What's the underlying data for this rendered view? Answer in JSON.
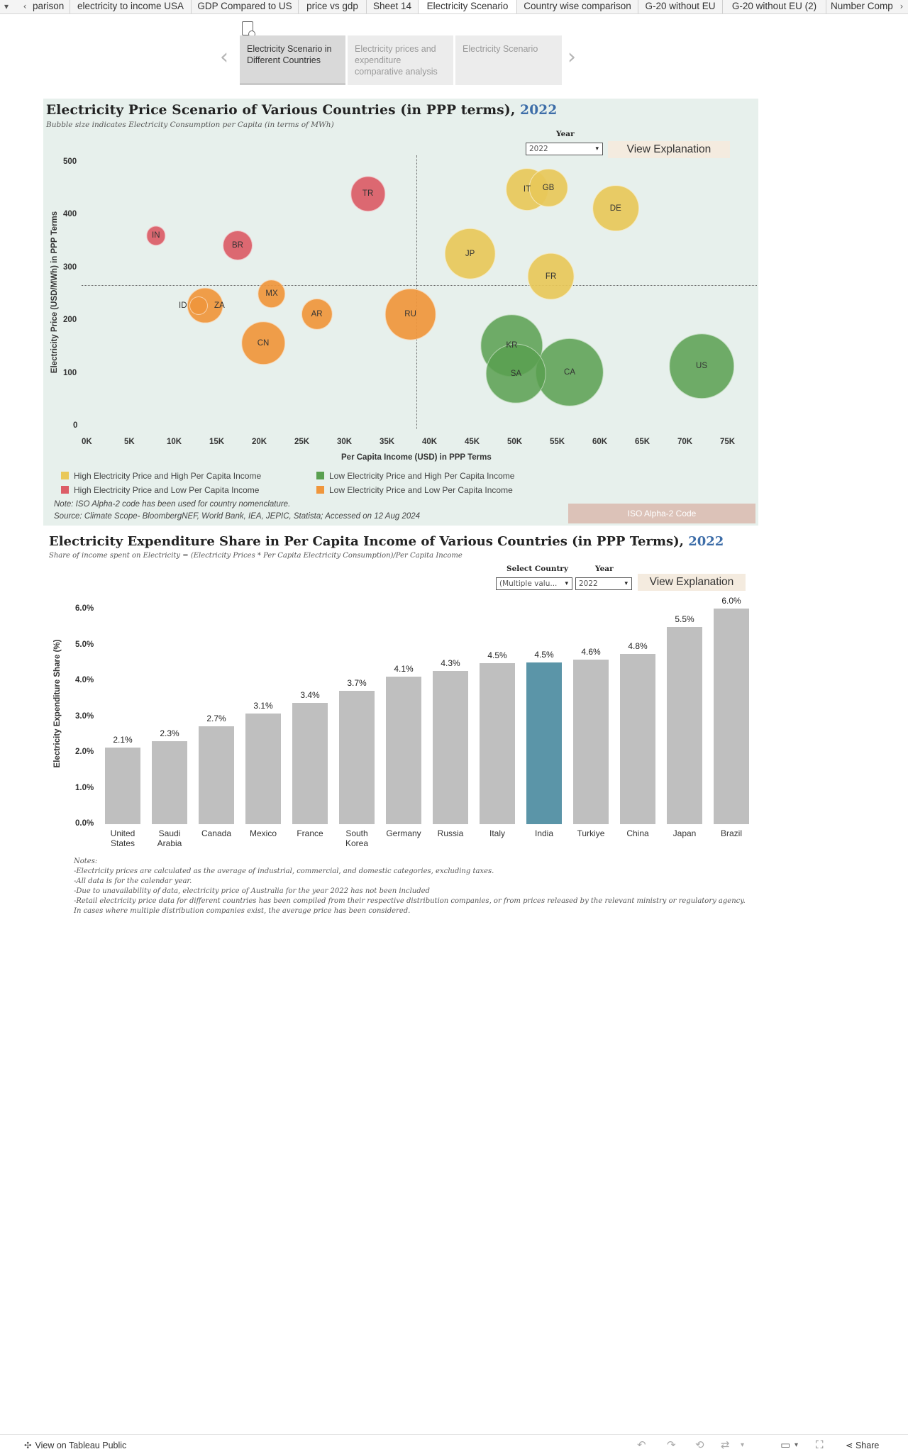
{
  "tabs": {
    "items": [
      {
        "label": "parison"
      },
      {
        "label": "electricity to income USA"
      },
      {
        "label": "GDP Compared to US"
      },
      {
        "label": "price vs gdp"
      },
      {
        "label": "Sheet 14"
      },
      {
        "label": "Electricity Scenario",
        "active": true
      },
      {
        "label": "Country wise comparison"
      },
      {
        "label": "G-20 without EU"
      },
      {
        "label": "G-20 without EU (2)"
      },
      {
        "label": "Number Comp"
      }
    ]
  },
  "story": {
    "points": [
      {
        "label": "Electricity Scenario in Different Countries"
      },
      {
        "label": "Electricity prices and expenditure comparative analysis"
      },
      {
        "label": "Electricity Scenario"
      }
    ]
  },
  "dashboard1": {
    "title": "Electricity Price Scenario of Various Countries (in PPP terms),",
    "title_year": "2022",
    "subtitle": "Bubble size indicates Electricity Consumption per Capita (in terms of MWh)",
    "year_label": "Year",
    "year_value": "2022",
    "explain_label": "View Explanation",
    "iso_label": "ISO Alpha-2 Code",
    "note": "Note: ISO Alpha-2 code has been used for country nomenclature.",
    "source": "Source: Climate Scope- BloombergNEF, World Bank, IEA, JEPIC, Statista; Accessed on 12 Aug 2024"
  },
  "chart_data": [
    {
      "type": "scatter",
      "title": "Electricity Price Scenario of Various Countries (in PPP terms), 2022",
      "xlabel": "Per Capita Income (USD) in PPP Terms",
      "ylabel": "Electricity Price (USD/MWh) in PPP Terms",
      "xlim": [
        0,
        78000
      ],
      "ylim": [
        0,
        520
      ],
      "x_ticks": [
        "0K",
        "5K",
        "10K",
        "15K",
        "20K",
        "25K",
        "30K",
        "35K",
        "40K",
        "45K",
        "50K",
        "55K",
        "60K",
        "65K",
        "70K",
        "75K"
      ],
      "y_ticks": [
        "0",
        "100",
        "200",
        "300",
        "400",
        "500"
      ],
      "reference_lines": {
        "x": 38500,
        "y": 268
      },
      "legend": [
        {
          "label": "High Electricity Price and High Per Capita Income",
          "color": "#e9c85a"
        },
        {
          "label": "High Electricity Price and Low Per Capita Income",
          "color": "#dc5d67"
        },
        {
          "label": "Low Electricity Price and High Per Capita Income",
          "color": "#5aa050"
        },
        {
          "label": "Low Electricity Price and Low Per Capita Income",
          "color": "#f0963c"
        }
      ],
      "points": [
        {
          "code": "IN",
          "x": 7900,
          "y": 362,
          "size": 1.1,
          "group": 1
        },
        {
          "code": "BR",
          "x": 17500,
          "y": 343,
          "size": 2.6,
          "group": 1
        },
        {
          "code": "TR",
          "x": 32800,
          "y": 441,
          "size": 3.6,
          "group": 1
        },
        {
          "code": "ID",
          "x": 12900,
          "y": 229,
          "size": 1.0,
          "group": 3,
          "label_side": "left"
        },
        {
          "code": "ZA",
          "x": 13700,
          "y": 230,
          "size": 3.8,
          "group": 3,
          "label_side": "right"
        },
        {
          "code": "MX",
          "x": 21500,
          "y": 252,
          "size": 2.3,
          "group": 3
        },
        {
          "code": "AR",
          "x": 26800,
          "y": 214,
          "size": 2.9,
          "group": 3
        },
        {
          "code": "CN",
          "x": 20500,
          "y": 159,
          "size": 5.6,
          "group": 3
        },
        {
          "code": "RU",
          "x": 37800,
          "y": 213,
          "size": 7.8,
          "group": 3
        },
        {
          "code": "JP",
          "x": 44800,
          "y": 328,
          "size": 7.8,
          "group": 0
        },
        {
          "code": "IT",
          "x": 51500,
          "y": 449,
          "size": 5.3,
          "group": 0
        },
        {
          "code": "GB",
          "x": 54000,
          "y": 453,
          "size": 4.4,
          "group": 0
        },
        {
          "code": "DE",
          "x": 61900,
          "y": 414,
          "size": 6.4,
          "group": 0
        },
        {
          "code": "FR",
          "x": 54300,
          "y": 285,
          "size": 6.6,
          "group": 0
        },
        {
          "code": "KR",
          "x": 49700,
          "y": 154,
          "size": 11.3,
          "group": 2
        },
        {
          "code": "SA",
          "x": 50200,
          "y": 101,
          "size": 10.6,
          "group": 2
        },
        {
          "code": "CA",
          "x": 56500,
          "y": 103,
          "size": 13.7,
          "group": 2
        },
        {
          "code": "US",
          "x": 72000,
          "y": 115,
          "size": 12.4,
          "group": 2
        }
      ]
    },
    {
      "type": "bar",
      "title": "Electricity Expenditure Share in Per Capita Income of Various Countries (in PPP Terms), 2022",
      "ylabel": "Electricity Expenditure Share (%)",
      "ylim": [
        0,
        6.0
      ],
      "y_ticks": [
        "0.0%",
        "1.0%",
        "2.0%",
        "3.0%",
        "4.0%",
        "5.0%",
        "6.0%"
      ],
      "categories": [
        "United States",
        "Saudi Arabia",
        "Canada",
        "Mexico",
        "France",
        "South Korea",
        "Germany",
        "Russia",
        "Italy",
        "India",
        "Turkiye",
        "China",
        "Japan",
        "Brazil"
      ],
      "values": [
        2.14,
        2.31,
        2.74,
        3.08,
        3.38,
        3.72,
        4.11,
        4.28,
        4.49,
        4.52,
        4.6,
        4.76,
        5.51,
        6.01
      ],
      "value_labels": [
        "2.1%",
        "2.3%",
        "2.7%",
        "3.1%",
        "3.4%",
        "3.7%",
        "4.1%",
        "4.3%",
        "4.5%",
        "4.5%",
        "4.6%",
        "4.8%",
        "5.5%",
        "6.0%"
      ],
      "highlight": "India",
      "bar_color": "#bfbfbf",
      "highlight_color": "#5b95a8"
    }
  ],
  "dashboard2": {
    "title": "Electricity Expenditure Share in Per Capita Income of Various Countries (in PPP Terms),",
    "title_year": "2022",
    "subtitle": "Share of income spent on Electricity = (Electricity Prices * Per Capita Electricity Consumption)/Per Capita Income",
    "country_label": "Select Country",
    "country_value": "(Multiple valu...",
    "year_label": "Year",
    "year_value": "2022",
    "explain_label": "View Explanation",
    "notes": [
      "Notes:",
      "-Electricity prices are calculated as the average of industrial, commercial, and domestic categories, excluding taxes.",
      "-All data is for the calendar year.",
      "-Due to unavailability of data, electricity price of Australia for the year 2022 has not been included",
      "-Retail electricity price data for different countries has been compiled from their respective distribution companies, or from prices released by the relevant ministry or regulatory agency. In cases where multiple distribution companies exist, the average price has been considered."
    ]
  },
  "footer": {
    "tableau_label": "View on Tableau Public",
    "share_label": "Share"
  }
}
